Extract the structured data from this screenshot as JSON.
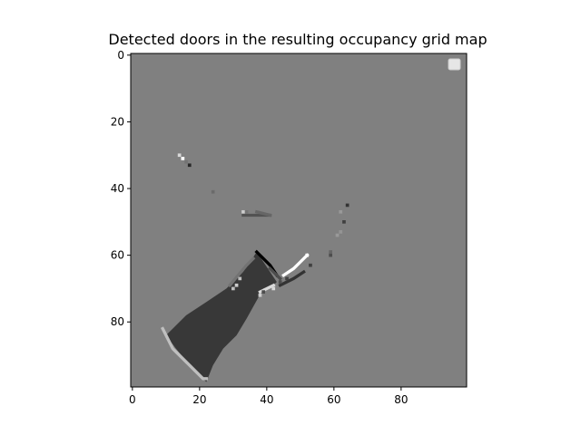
{
  "chart_data": {
    "type": "heatmap",
    "title": "Detected doors in the resulting occupancy grid map",
    "xlabel": "",
    "ylabel": "",
    "grid_size": [
      100,
      100
    ],
    "x_ticks": [
      0,
      20,
      40,
      60,
      80
    ],
    "y_ticks": [
      0,
      20,
      40,
      60,
      80
    ],
    "xlim": [
      -0.5,
      99.5
    ],
    "ylim": [
      99.5,
      -0.5
    ],
    "grid": false,
    "legend": {
      "placement": "top-right",
      "entries": []
    },
    "colormap": "gray",
    "background_value": 0.5,
    "regions": [
      {
        "kind": "polygon",
        "value": 0.22,
        "points": [
          [
            37,
            59
          ],
          [
            43,
            68
          ],
          [
            42,
            69
          ],
          [
            39,
            70
          ],
          [
            34,
            79
          ],
          [
            31,
            84
          ],
          [
            27,
            88
          ],
          [
            24,
            93
          ],
          [
            22,
            98
          ],
          [
            17,
            93
          ],
          [
            13,
            88
          ],
          [
            10,
            84
          ],
          [
            12,
            82
          ],
          [
            16,
            78
          ],
          [
            22,
            74
          ],
          [
            28,
            70
          ],
          [
            33,
            65
          ],
          [
            35,
            62
          ]
        ]
      },
      {
        "kind": "polyline",
        "value": 0.75,
        "points": [
          [
            9,
            82
          ],
          [
            12,
            88
          ],
          [
            17,
            93
          ],
          [
            21,
            97
          ],
          [
            22,
            97
          ]
        ]
      },
      {
        "kind": "polyline",
        "value": 0.0,
        "points": [
          [
            37,
            59
          ],
          [
            39,
            61
          ],
          [
            41,
            63
          ],
          [
            43,
            66
          ]
        ]
      },
      {
        "kind": "polyline",
        "value": 0.45,
        "points": [
          [
            29,
            69
          ],
          [
            34,
            63
          ],
          [
            36,
            61
          ]
        ]
      },
      {
        "kind": "polyline",
        "value": 1.0,
        "points": [
          [
            45,
            66
          ],
          [
            48,
            64
          ],
          [
            50,
            62
          ],
          [
            52,
            60
          ]
        ]
      },
      {
        "kind": "polyline",
        "value": 0.2,
        "points": [
          [
            44,
            69
          ],
          [
            48,
            67
          ],
          [
            51,
            65
          ]
        ]
      },
      {
        "kind": "polyline",
        "value": 0.85,
        "points": [
          [
            38,
            71
          ],
          [
            42,
            69
          ]
        ]
      },
      {
        "kind": "polyline",
        "value": 0.3,
        "points": [
          [
            41,
            64
          ],
          [
            44,
            67
          ]
        ]
      },
      {
        "kind": "polyline",
        "value": 0.32,
        "points": [
          [
            33,
            48
          ],
          [
            41,
            48
          ]
        ]
      },
      {
        "kind": "polyline",
        "value": 0.4,
        "points": [
          [
            37,
            47
          ],
          [
            41,
            48
          ]
        ]
      }
    ],
    "cells": [
      {
        "x": 14,
        "y": 30,
        "value": 0.85
      },
      {
        "x": 15,
        "y": 31,
        "value": 1.0
      },
      {
        "x": 16,
        "y": 32,
        "value": 0.45
      },
      {
        "x": 17,
        "y": 33,
        "value": 0.15
      },
      {
        "x": 24,
        "y": 41,
        "value": 0.42
      },
      {
        "x": 33,
        "y": 47,
        "value": 0.8
      },
      {
        "x": 34,
        "y": 47,
        "value": 0.45
      },
      {
        "x": 64,
        "y": 45,
        "value": 0.2
      },
      {
        "x": 63,
        "y": 50,
        "value": 0.25
      },
      {
        "x": 62,
        "y": 47,
        "value": 0.6
      },
      {
        "x": 61,
        "y": 54,
        "value": 0.6
      },
      {
        "x": 62,
        "y": 53,
        "value": 0.58
      },
      {
        "x": 59,
        "y": 59,
        "value": 0.4
      },
      {
        "x": 59,
        "y": 60,
        "value": 0.3
      },
      {
        "x": 52,
        "y": 60,
        "value": 1.0
      },
      {
        "x": 53,
        "y": 63,
        "value": 0.25
      },
      {
        "x": 42,
        "y": 70,
        "value": 0.85
      },
      {
        "x": 39,
        "y": 71,
        "value": 0.3
      },
      {
        "x": 38,
        "y": 72,
        "value": 0.8
      },
      {
        "x": 44,
        "y": 68,
        "value": 0.3
      },
      {
        "x": 46,
        "y": 67,
        "value": 0.25
      },
      {
        "x": 30,
        "y": 70,
        "value": 0.75
      },
      {
        "x": 31,
        "y": 69,
        "value": 0.8
      },
      {
        "x": 32,
        "y": 67,
        "value": 0.75
      }
    ]
  }
}
